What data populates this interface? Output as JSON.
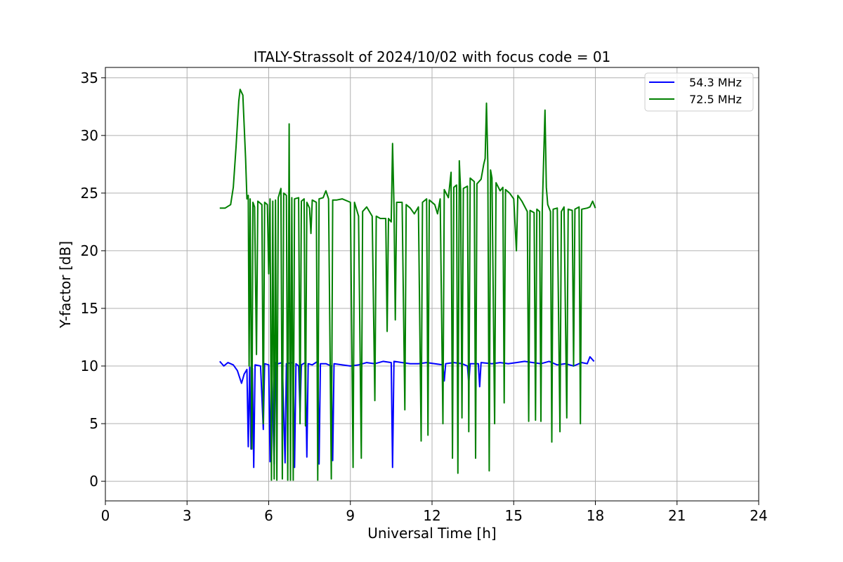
{
  "chart_data": {
    "type": "line",
    "title": "ITALY-Strassolt of 2024/10/02 with focus code = 01",
    "xlabel": "Universal Time [h]",
    "ylabel": "Y-factor [dB]",
    "xlim": [
      0,
      24
    ],
    "ylim": [
      -1.7,
      35.9
    ],
    "xticks": [
      0,
      3,
      6,
      9,
      12,
      15,
      18,
      21,
      24
    ],
    "yticks": [
      0,
      5,
      10,
      15,
      20,
      25,
      30,
      35
    ],
    "grid": true,
    "legend_position": "top-right",
    "series": [
      {
        "name": "54.3 MHz",
        "color": "#0000ff",
        "points": [
          [
            4.2,
            10.4
          ],
          [
            4.35,
            10.0
          ],
          [
            4.5,
            10.3
          ],
          [
            4.7,
            10.1
          ],
          [
            4.85,
            9.6
          ],
          [
            5.0,
            8.5
          ],
          [
            5.1,
            9.3
          ],
          [
            5.2,
            9.7
          ],
          [
            5.25,
            3.0
          ],
          [
            5.3,
            9.9
          ],
          [
            5.35,
            2.8
          ],
          [
            5.4,
            9.8
          ],
          [
            5.45,
            1.2
          ],
          [
            5.5,
            10.1
          ],
          [
            5.7,
            10.0
          ],
          [
            5.8,
            4.5
          ],
          [
            5.85,
            10.2
          ],
          [
            6.0,
            10.1
          ],
          [
            6.05,
            1.7
          ],
          [
            6.1,
            10.2
          ],
          [
            6.2,
            1.5
          ],
          [
            6.25,
            10.3
          ],
          [
            6.35,
            10.2
          ],
          [
            6.5,
            10.3
          ],
          [
            6.6,
            1.6
          ],
          [
            6.65,
            10.2
          ],
          [
            6.9,
            10.3
          ],
          [
            6.95,
            1.2
          ],
          [
            7.0,
            10.2
          ],
          [
            7.1,
            10.0
          ],
          [
            7.15,
            6.0
          ],
          [
            7.2,
            10.1
          ],
          [
            7.35,
            10.3
          ],
          [
            7.4,
            2.1
          ],
          [
            7.45,
            10.2
          ],
          [
            7.6,
            10.1
          ],
          [
            7.8,
            10.4
          ],
          [
            7.85,
            1.5
          ],
          [
            7.9,
            10.2
          ],
          [
            8.1,
            10.2
          ],
          [
            8.3,
            10.0
          ],
          [
            8.35,
            1.8
          ],
          [
            8.4,
            10.2
          ],
          [
            8.7,
            10.1
          ],
          [
            9.0,
            10.0
          ],
          [
            9.3,
            10.1
          ],
          [
            9.6,
            10.3
          ],
          [
            9.9,
            10.2
          ],
          [
            10.2,
            10.4
          ],
          [
            10.5,
            10.3
          ],
          [
            10.55,
            1.2
          ],
          [
            10.6,
            10.4
          ],
          [
            10.9,
            10.3
          ],
          [
            11.2,
            10.2
          ],
          [
            11.5,
            10.2
          ],
          [
            11.8,
            10.3
          ],
          [
            12.1,
            10.2
          ],
          [
            12.4,
            10.1
          ],
          [
            12.45,
            8.7
          ],
          [
            12.5,
            10.2
          ],
          [
            12.8,
            10.3
          ],
          [
            13.1,
            10.2
          ],
          [
            13.3,
            10.0
          ],
          [
            13.35,
            8.5
          ],
          [
            13.4,
            10.2
          ],
          [
            13.7,
            10.2
          ],
          [
            13.75,
            8.2
          ],
          [
            13.8,
            10.3
          ],
          [
            14.2,
            10.2
          ],
          [
            14.5,
            10.3
          ],
          [
            14.8,
            10.2
          ],
          [
            15.1,
            10.3
          ],
          [
            15.4,
            10.4
          ],
          [
            15.7,
            10.3
          ],
          [
            16.0,
            10.2
          ],
          [
            16.3,
            10.4
          ],
          [
            16.6,
            10.1
          ],
          [
            16.9,
            10.2
          ],
          [
            17.2,
            10.0
          ],
          [
            17.5,
            10.3
          ],
          [
            17.7,
            10.2
          ],
          [
            17.8,
            10.8
          ],
          [
            17.95,
            10.4
          ]
        ]
      },
      {
        "name": "72.5 MHz",
        "color": "#008000",
        "points": [
          [
            4.2,
            23.7
          ],
          [
            4.4,
            23.7
          ],
          [
            4.6,
            24.0
          ],
          [
            4.7,
            25.5
          ],
          [
            4.8,
            29.0
          ],
          [
            4.9,
            33.0
          ],
          [
            4.95,
            34.0
          ],
          [
            5.05,
            33.5
          ],
          [
            5.15,
            28.0
          ],
          [
            5.2,
            24.5
          ],
          [
            5.25,
            24.8
          ],
          [
            5.28,
            10.0
          ],
          [
            5.32,
            24.5
          ],
          [
            5.38,
            2.8
          ],
          [
            5.42,
            24.2
          ],
          [
            5.48,
            23.8
          ],
          [
            5.55,
            11.0
          ],
          [
            5.6,
            24.3
          ],
          [
            5.75,
            24.0
          ],
          [
            5.8,
            5.0
          ],
          [
            5.85,
            24.2
          ],
          [
            5.95,
            24.0
          ],
          [
            6.0,
            18.0
          ],
          [
            6.05,
            24.5
          ],
          [
            6.1,
            0.1
          ],
          [
            6.15,
            24.3
          ],
          [
            6.2,
            0.2
          ],
          [
            6.25,
            24.4
          ],
          [
            6.3,
            0.1
          ],
          [
            6.35,
            24.6
          ],
          [
            6.45,
            25.4
          ],
          [
            6.5,
            0.2
          ],
          [
            6.55,
            25.0
          ],
          [
            6.65,
            24.8
          ],
          [
            6.7,
            0.1
          ],
          [
            6.75,
            31.0
          ],
          [
            6.8,
            0.1
          ],
          [
            6.85,
            24.6
          ],
          [
            6.9,
            0.1
          ],
          [
            6.95,
            24.5
          ],
          [
            7.1,
            24.6
          ],
          [
            7.15,
            5.0
          ],
          [
            7.2,
            24.3
          ],
          [
            7.3,
            24.5
          ],
          [
            7.35,
            4.8
          ],
          [
            7.4,
            24.2
          ],
          [
            7.5,
            23.7
          ],
          [
            7.55,
            21.5
          ],
          [
            7.6,
            24.4
          ],
          [
            7.75,
            24.2
          ],
          [
            7.8,
            0.1
          ],
          [
            7.85,
            24.5
          ],
          [
            8.0,
            24.6
          ],
          [
            8.1,
            25.2
          ],
          [
            8.2,
            24.5
          ],
          [
            8.3,
            0.2
          ],
          [
            8.35,
            24.4
          ],
          [
            8.5,
            24.4
          ],
          [
            8.7,
            24.5
          ],
          [
            9.0,
            24.2
          ],
          [
            9.1,
            1.2
          ],
          [
            9.15,
            24.2
          ],
          [
            9.3,
            23.0
          ],
          [
            9.4,
            2.0
          ],
          [
            9.45,
            23.4
          ],
          [
            9.6,
            23.8
          ],
          [
            9.8,
            23.0
          ],
          [
            9.9,
            7.0
          ],
          [
            9.95,
            23.0
          ],
          [
            10.1,
            22.8
          ],
          [
            10.3,
            22.8
          ],
          [
            10.35,
            13.0
          ],
          [
            10.4,
            22.8
          ],
          [
            10.5,
            22.5
          ],
          [
            10.55,
            29.3
          ],
          [
            10.6,
            24.0
          ],
          [
            10.65,
            14.0
          ],
          [
            10.7,
            24.2
          ],
          [
            10.9,
            24.2
          ],
          [
            11.0,
            6.2
          ],
          [
            11.05,
            24.0
          ],
          [
            11.2,
            23.7
          ],
          [
            11.35,
            23.2
          ],
          [
            11.5,
            23.8
          ],
          [
            11.6,
            3.5
          ],
          [
            11.65,
            24.2
          ],
          [
            11.8,
            24.5
          ],
          [
            11.85,
            4.0
          ],
          [
            11.9,
            24.4
          ],
          [
            12.1,
            24.0
          ],
          [
            12.2,
            23.2
          ],
          [
            12.3,
            24.5
          ],
          [
            12.4,
            5.0
          ],
          [
            12.45,
            25.3
          ],
          [
            12.6,
            24.6
          ],
          [
            12.7,
            26.8
          ],
          [
            12.75,
            2.0
          ],
          [
            12.8,
            25.5
          ],
          [
            12.9,
            25.7
          ],
          [
            12.95,
            0.7
          ],
          [
            13.0,
            27.8
          ],
          [
            13.05,
            25.2
          ],
          [
            13.1,
            5.5
          ],
          [
            13.15,
            25.4
          ],
          [
            13.3,
            25.6
          ],
          [
            13.35,
            4.3
          ],
          [
            13.4,
            26.3
          ],
          [
            13.55,
            26.0
          ],
          [
            13.6,
            2.0
          ],
          [
            13.65,
            25.8
          ],
          [
            13.8,
            26.2
          ],
          [
            13.9,
            27.5
          ],
          [
            13.95,
            28.0
          ],
          [
            14.0,
            32.8
          ],
          [
            14.05,
            27.6
          ],
          [
            14.1,
            0.9
          ],
          [
            14.15,
            27.0
          ],
          [
            14.2,
            26.3
          ],
          [
            14.3,
            5.0
          ],
          [
            14.35,
            25.9
          ],
          [
            14.5,
            25.2
          ],
          [
            14.6,
            25.5
          ],
          [
            14.65,
            6.8
          ],
          [
            14.7,
            25.3
          ],
          [
            14.85,
            25.0
          ],
          [
            15.0,
            24.5
          ],
          [
            15.1,
            20.0
          ],
          [
            15.15,
            24.8
          ],
          [
            15.3,
            24.3
          ],
          [
            15.5,
            23.4
          ],
          [
            15.55,
            5.2
          ],
          [
            15.6,
            23.5
          ],
          [
            15.75,
            23.3
          ],
          [
            15.8,
            5.3
          ],
          [
            15.85,
            23.6
          ],
          [
            15.95,
            23.4
          ],
          [
            16.0,
            5.2
          ],
          [
            16.05,
            23.5
          ],
          [
            16.15,
            32.2
          ],
          [
            16.2,
            25.5
          ],
          [
            16.25,
            24.0
          ],
          [
            16.35,
            23.4
          ],
          [
            16.4,
            3.4
          ],
          [
            16.45,
            23.6
          ],
          [
            16.6,
            23.7
          ],
          [
            16.7,
            4.3
          ],
          [
            16.75,
            23.4
          ],
          [
            16.85,
            23.8
          ],
          [
            16.95,
            5.5
          ],
          [
            17.0,
            23.6
          ],
          [
            17.15,
            23.5
          ],
          [
            17.2,
            10.0
          ],
          [
            17.25,
            23.6
          ],
          [
            17.4,
            23.8
          ],
          [
            17.45,
            5.0
          ],
          [
            17.5,
            23.6
          ],
          [
            17.7,
            23.7
          ],
          [
            17.8,
            23.8
          ],
          [
            17.9,
            24.3
          ],
          [
            18.0,
            23.7
          ]
        ]
      }
    ]
  }
}
